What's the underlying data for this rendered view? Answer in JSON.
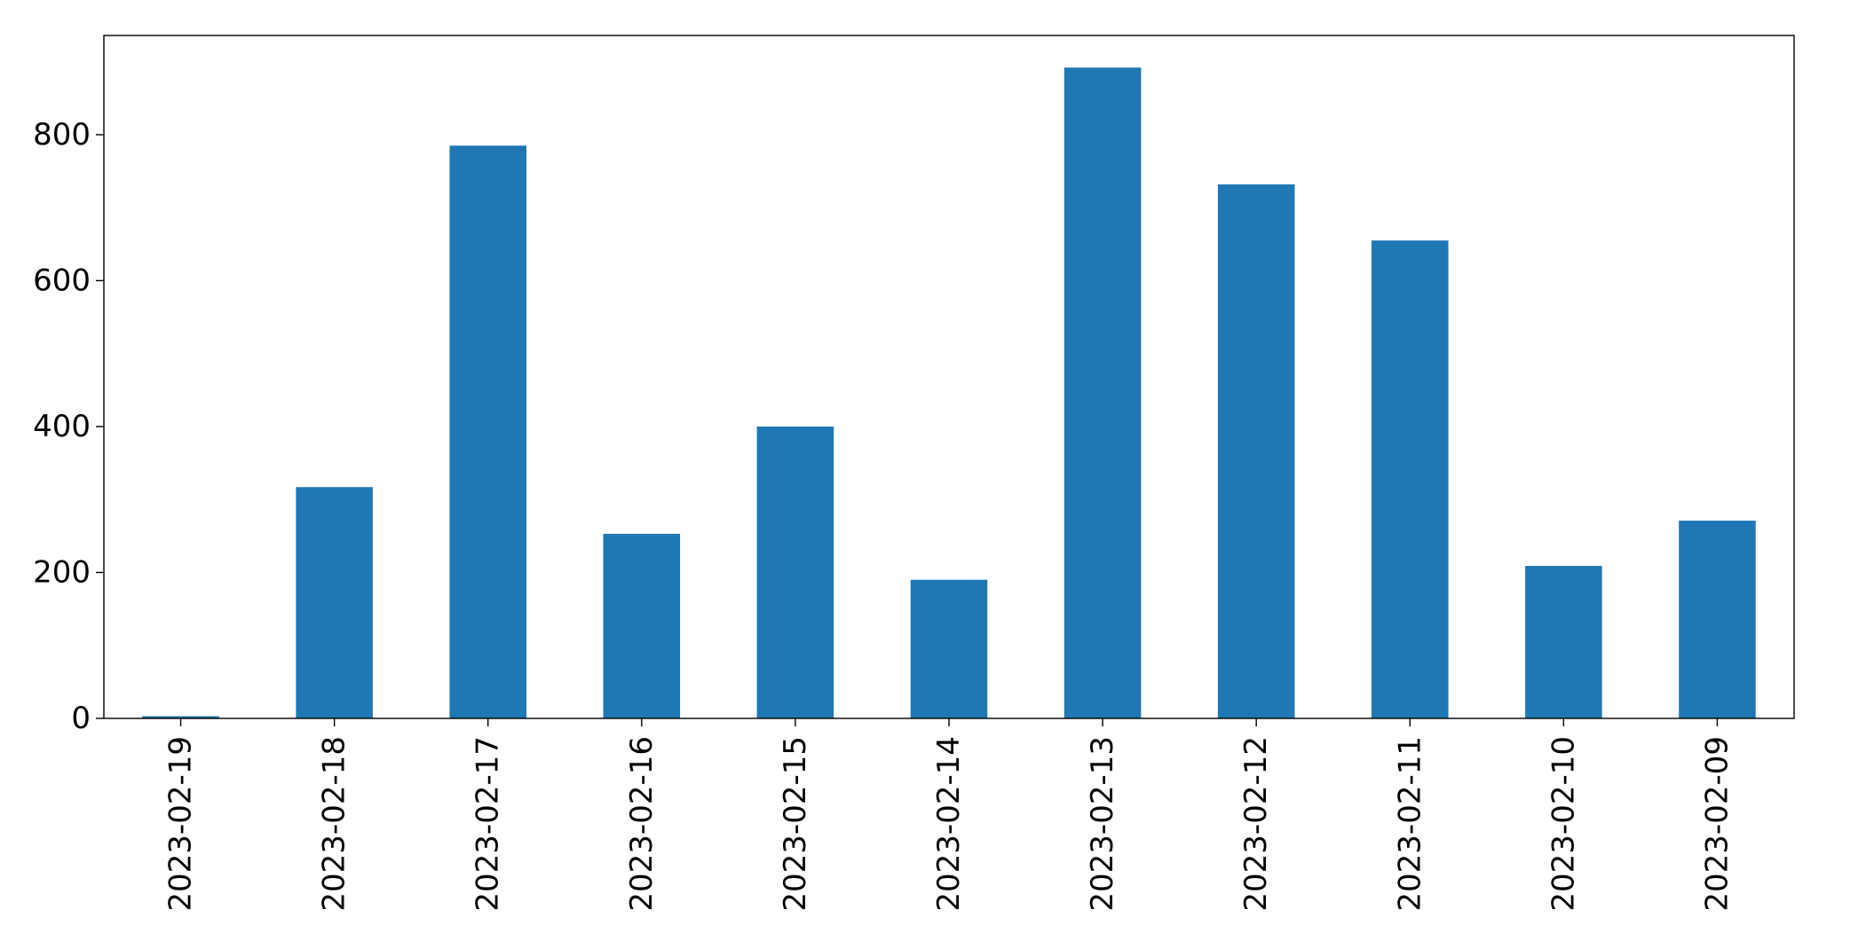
{
  "chart_data": {
    "type": "bar",
    "title": "",
    "xlabel": "",
    "ylabel": "",
    "categories": [
      "2023-02-19",
      "2023-02-18",
      "2023-02-17",
      "2023-02-16",
      "2023-02-15",
      "2023-02-14",
      "2023-02-13",
      "2023-02-12",
      "2023-02-11",
      "2023-02-10",
      "2023-02-09"
    ],
    "values": [
      3,
      317,
      785,
      253,
      400,
      190,
      892,
      732,
      655,
      209,
      271
    ],
    "ylim": [
      0,
      936
    ],
    "yticks": [
      0,
      200,
      400,
      600,
      800
    ],
    "bar_color": "#1f77b4",
    "grid": false,
    "legend": "none"
  }
}
